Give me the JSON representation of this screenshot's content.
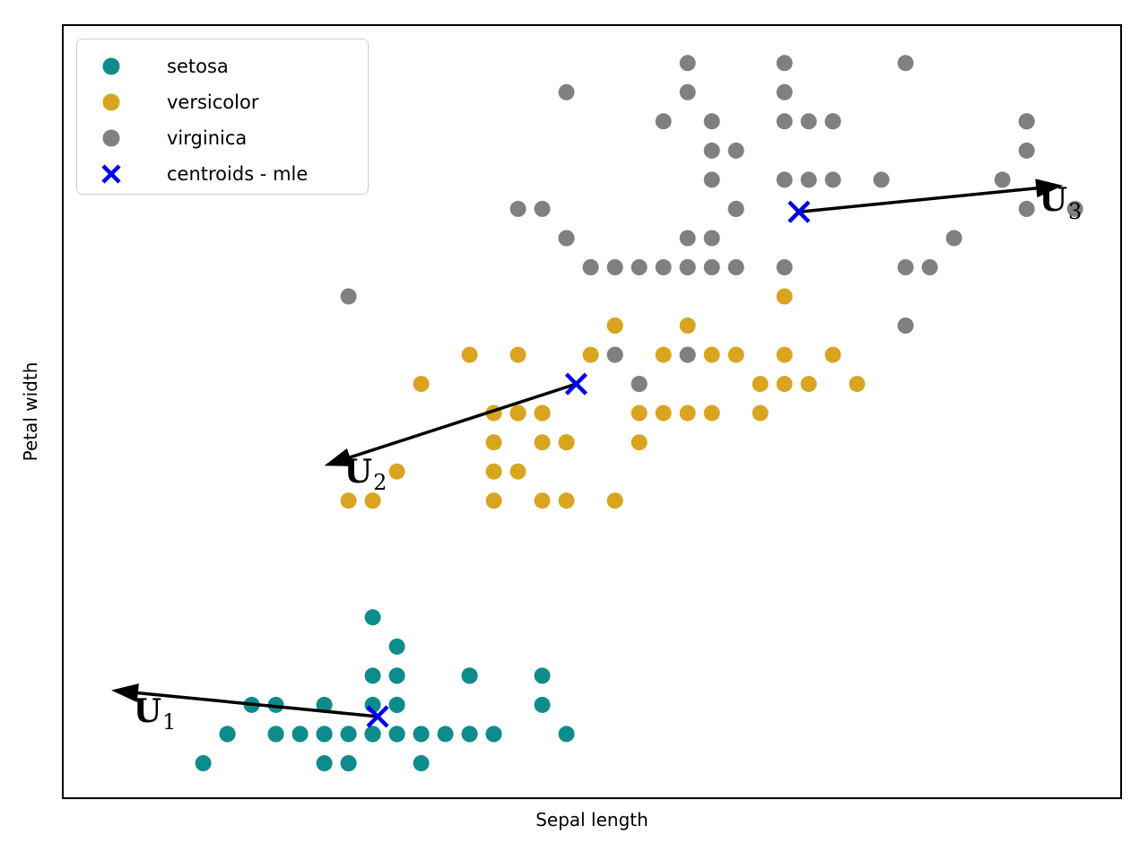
{
  "chart_data": {
    "type": "scatter",
    "xlabel": "Sepal length",
    "ylabel": "Petal width",
    "xlim": [
      3.72,
      8.09
    ],
    "ylim": [
      -0.02,
      2.63
    ],
    "grid": false,
    "legend_position": "upper left",
    "marker_radius_px": 9,
    "series": [
      {
        "name": "setosa",
        "color": "#0E8C8C",
        "marker": "circle",
        "points": [
          [
            5.1,
            0.2
          ],
          [
            4.9,
            0.2
          ],
          [
            4.7,
            0.2
          ],
          [
            4.6,
            0.2
          ],
          [
            5.0,
            0.2
          ],
          [
            5.4,
            0.4
          ],
          [
            4.6,
            0.3
          ],
          [
            5.0,
            0.2
          ],
          [
            4.4,
            0.2
          ],
          [
            4.9,
            0.1
          ],
          [
            5.4,
            0.2
          ],
          [
            4.8,
            0.2
          ],
          [
            4.8,
            0.1
          ],
          [
            4.3,
            0.1
          ],
          [
            5.8,
            0.2
          ],
          [
            5.7,
            0.4
          ],
          [
            5.4,
            0.4
          ],
          [
            5.1,
            0.3
          ],
          [
            5.7,
            0.3
          ],
          [
            5.1,
            0.3
          ],
          [
            5.4,
            0.2
          ],
          [
            5.1,
            0.4
          ],
          [
            4.6,
            0.2
          ],
          [
            5.1,
            0.5
          ],
          [
            4.8,
            0.2
          ],
          [
            5.0,
            0.2
          ],
          [
            5.0,
            0.4
          ],
          [
            5.2,
            0.2
          ],
          [
            5.2,
            0.2
          ],
          [
            4.7,
            0.2
          ],
          [
            4.8,
            0.2
          ],
          [
            5.4,
            0.4
          ],
          [
            5.2,
            0.1
          ],
          [
            5.5,
            0.2
          ],
          [
            4.9,
            0.2
          ],
          [
            5.0,
            0.2
          ],
          [
            5.5,
            0.2
          ],
          [
            4.9,
            0.1
          ],
          [
            4.4,
            0.2
          ],
          [
            5.1,
            0.2
          ],
          [
            5.0,
            0.3
          ],
          [
            4.5,
            0.3
          ],
          [
            4.4,
            0.2
          ],
          [
            5.0,
            0.6
          ],
          [
            5.1,
            0.4
          ],
          [
            4.8,
            0.3
          ],
          [
            5.1,
            0.2
          ],
          [
            4.6,
            0.2
          ],
          [
            5.3,
            0.2
          ],
          [
            5.0,
            0.2
          ]
        ]
      },
      {
        "name": "versicolor",
        "color": "#D9A420",
        "marker": "circle",
        "points": [
          [
            7.0,
            1.4
          ],
          [
            6.4,
            1.5
          ],
          [
            6.9,
            1.5
          ],
          [
            5.5,
            1.3
          ],
          [
            6.5,
            1.5
          ],
          [
            5.7,
            1.3
          ],
          [
            6.3,
            1.6
          ],
          [
            4.9,
            1.0
          ],
          [
            6.6,
            1.3
          ],
          [
            5.2,
            1.4
          ],
          [
            5.0,
            1.0
          ],
          [
            5.9,
            1.5
          ],
          [
            6.0,
            1.0
          ],
          [
            6.1,
            1.4
          ],
          [
            5.6,
            1.3
          ],
          [
            6.7,
            1.4
          ],
          [
            5.6,
            1.5
          ],
          [
            5.8,
            1.0
          ],
          [
            6.2,
            1.5
          ],
          [
            5.6,
            1.1
          ],
          [
            5.9,
            1.8
          ],
          [
            6.1,
            1.3
          ],
          [
            6.3,
            1.5
          ],
          [
            6.1,
            1.2
          ],
          [
            6.4,
            1.3
          ],
          [
            6.6,
            1.4
          ],
          [
            6.8,
            1.4
          ],
          [
            6.7,
            1.7
          ],
          [
            6.0,
            1.5
          ],
          [
            5.7,
            1.0
          ],
          [
            5.5,
            1.1
          ],
          [
            5.5,
            1.0
          ],
          [
            5.8,
            1.2
          ],
          [
            6.0,
            1.6
          ],
          [
            5.4,
            1.5
          ],
          [
            6.0,
            1.6
          ],
          [
            6.7,
            1.5
          ],
          [
            6.3,
            1.3
          ],
          [
            5.6,
            1.3
          ],
          [
            5.5,
            1.3
          ],
          [
            5.5,
            1.2
          ],
          [
            6.1,
            1.4
          ],
          [
            5.8,
            1.2
          ],
          [
            5.0,
            1.0
          ],
          [
            5.6,
            1.3
          ],
          [
            5.7,
            1.2
          ],
          [
            5.7,
            1.3
          ],
          [
            6.2,
            1.3
          ],
          [
            5.1,
            1.1
          ],
          [
            5.7,
            1.3
          ]
        ]
      },
      {
        "name": "virginica",
        "color": "#808080",
        "marker": "circle",
        "points": [
          [
            6.3,
            2.5
          ],
          [
            5.8,
            1.9
          ],
          [
            7.1,
            2.1
          ],
          [
            6.3,
            1.8
          ],
          [
            6.5,
            2.2
          ],
          [
            7.6,
            2.1
          ],
          [
            4.9,
            1.7
          ],
          [
            7.3,
            1.8
          ],
          [
            6.7,
            1.8
          ],
          [
            7.2,
            2.5
          ],
          [
            6.5,
            2.0
          ],
          [
            6.4,
            1.9
          ],
          [
            6.8,
            2.1
          ],
          [
            5.7,
            2.0
          ],
          [
            5.8,
            2.4
          ],
          [
            6.4,
            2.3
          ],
          [
            6.5,
            1.8
          ],
          [
            7.7,
            2.2
          ],
          [
            7.7,
            2.3
          ],
          [
            6.0,
            1.5
          ],
          [
            6.9,
            2.3
          ],
          [
            5.6,
            2.0
          ],
          [
            7.7,
            2.0
          ],
          [
            6.3,
            1.8
          ],
          [
            6.7,
            2.1
          ],
          [
            7.2,
            1.8
          ],
          [
            6.2,
            1.8
          ],
          [
            6.1,
            1.8
          ],
          [
            6.4,
            2.1
          ],
          [
            7.2,
            1.6
          ],
          [
            7.4,
            1.9
          ],
          [
            7.9,
            2.0
          ],
          [
            6.4,
            2.2
          ],
          [
            6.3,
            1.5
          ],
          [
            6.1,
            1.4
          ],
          [
            7.7,
            2.3
          ],
          [
            6.3,
            2.4
          ],
          [
            6.4,
            1.8
          ],
          [
            6.0,
            1.8
          ],
          [
            6.9,
            2.1
          ],
          [
            6.7,
            2.4
          ],
          [
            6.9,
            2.3
          ],
          [
            5.8,
            1.9
          ],
          [
            6.8,
            2.3
          ],
          [
            6.7,
            2.5
          ],
          [
            6.7,
            2.3
          ],
          [
            6.3,
            1.9
          ],
          [
            6.5,
            2.0
          ],
          [
            6.2,
            2.3
          ],
          [
            5.9,
            1.8
          ]
        ]
      }
    ],
    "centroids": {
      "name": "centroids - mle",
      "color": "#0000EE",
      "marker": "x",
      "points": [
        [
          5.02,
          0.26
        ],
        [
          5.84,
          1.4
        ],
        [
          6.76,
          1.99
        ]
      ]
    },
    "arrows": [
      {
        "label": "U",
        "sub": "1",
        "from": [
          5.02,
          0.26
        ],
        "to": [
          3.92,
          0.35
        ],
        "label_at": [
          4.1,
          0.27
        ]
      },
      {
        "label": "U",
        "sub": "2",
        "from": [
          5.84,
          1.4
        ],
        "to": [
          4.8,
          1.12
        ],
        "label_at": [
          4.97,
          1.09
        ]
      },
      {
        "label": "U",
        "sub": "3",
        "from": [
          6.76,
          1.99
        ],
        "to": [
          7.85,
          2.08
        ],
        "label_at": [
          7.84,
          2.02
        ]
      }
    ],
    "arrow_color": "#000000"
  },
  "legend": {
    "entries": [
      {
        "label": "setosa",
        "marker": "circle",
        "color": "#0E8C8C"
      },
      {
        "label": "versicolor",
        "marker": "circle",
        "color": "#D9A420"
      },
      {
        "label": "virginica",
        "marker": "circle",
        "color": "#808080"
      },
      {
        "label": "centroids - mle",
        "marker": "x",
        "color": "#0000EE"
      }
    ]
  }
}
